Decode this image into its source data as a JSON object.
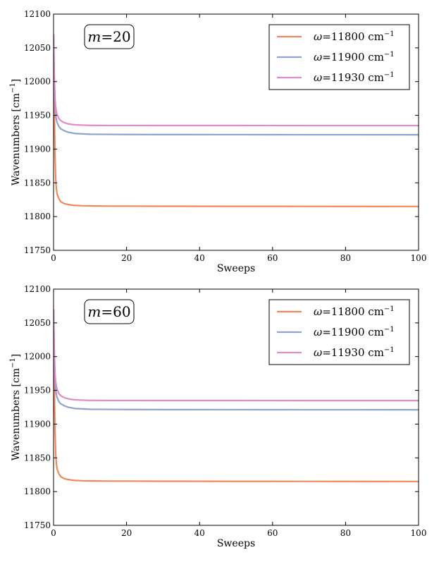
{
  "chart_data": [
    {
      "type": "line",
      "annotation": {
        "var": "m",
        "value": "=20"
      },
      "xlabel": "Sweeps",
      "ylabel": "Wavenumbers [cm",
      "ylabel_sup": "−1",
      "ylabel_close": "]",
      "xlim": [
        0,
        100
      ],
      "ylim": [
        11750,
        12100
      ],
      "xticks": [
        0,
        20,
        40,
        60,
        80,
        100
      ],
      "yticks": [
        11750,
        11800,
        11850,
        11900,
        11950,
        12000,
        12050,
        12100
      ],
      "legend_position": "top-right",
      "series": [
        {
          "name_var": "ω",
          "name": "=11800 cm",
          "name_sup": "−1",
          "color": "#f4875a",
          "x": [
            0,
            0.2,
            0.4,
            0.6,
            0.8,
            1,
            1.5,
            2,
            3,
            4,
            5,
            6,
            8,
            10,
            15,
            20,
            30,
            50,
            70,
            100
          ],
          "y": [
            12070,
            11960,
            11890,
            11855,
            11840,
            11833,
            11826,
            11822,
            11819,
            11818,
            11817,
            11816.5,
            11816,
            11815.8,
            11815.5,
            11815.5,
            11815.3,
            11815.2,
            11815.1,
            11815
          ]
        },
        {
          "name_var": "ω",
          "name": "=11900 cm",
          "name_sup": "−1",
          "color": "#8fa3cf",
          "x": [
            0,
            0.2,
            0.4,
            0.6,
            0.8,
            1,
            1.5,
            2,
            3,
            4,
            5,
            6,
            8,
            10,
            15,
            20,
            30,
            50,
            70,
            100
          ],
          "y": [
            12070,
            12000,
            11965,
            11950,
            11943,
            11939,
            11933,
            11930,
            11927,
            11925,
            11924,
            11923,
            11922.5,
            11922,
            11921.8,
            11921.6,
            11921.5,
            11921.4,
            11921.3,
            11921.2
          ]
        },
        {
          "name_var": "ω",
          "name": "=11930 cm",
          "name_sup": "−1",
          "color": "#e48ac9",
          "x": [
            0,
            0.2,
            0.4,
            0.6,
            0.8,
            1,
            1.5,
            2,
            3,
            4,
            5,
            6,
            8,
            10,
            15,
            20,
            30,
            50,
            70,
            100
          ],
          "y": [
            12070,
            12010,
            11975,
            11962,
            11955,
            11951,
            11945,
            11942,
            11939,
            11937.5,
            11936.5,
            11936,
            11935.5,
            11935.2,
            11935,
            11935,
            11934.9,
            11934.9,
            11934.8,
            11934.8
          ]
        }
      ]
    },
    {
      "type": "line",
      "annotation": {
        "var": "m",
        "value": "=60"
      },
      "xlabel": "Sweeps",
      "ylabel": "Wavenumbers [cm",
      "ylabel_sup": "−1",
      "ylabel_close": "]",
      "xlim": [
        0,
        100
      ],
      "ylim": [
        11750,
        12100
      ],
      "xticks": [
        0,
        20,
        40,
        60,
        80,
        100
      ],
      "yticks": [
        11750,
        11800,
        11850,
        11900,
        11950,
        12000,
        12050,
        12100
      ],
      "legend_position": "top-right",
      "series": [
        {
          "name_var": "ω",
          "name": "=11800 cm",
          "name_sup": "−1",
          "color": "#f4875a",
          "x": [
            0,
            0.2,
            0.4,
            0.6,
            0.8,
            1,
            1.5,
            2,
            3,
            4,
            5,
            6,
            8,
            10,
            15,
            20,
            30,
            50,
            70,
            100
          ],
          "y": [
            12070,
            11960,
            11890,
            11855,
            11840,
            11833,
            11826,
            11822,
            11819,
            11818,
            11817,
            11816.5,
            11816,
            11815.8,
            11815.5,
            11815.5,
            11815.3,
            11815.2,
            11815.1,
            11815
          ]
        },
        {
          "name_var": "ω",
          "name": "=11900 cm",
          "name_sup": "−1",
          "color": "#8fa3cf",
          "x": [
            0,
            0.2,
            0.4,
            0.6,
            0.8,
            1,
            1.5,
            2,
            3,
            4,
            5,
            6,
            8,
            10,
            15,
            20,
            30,
            50,
            70,
            100
          ],
          "y": [
            12070,
            12000,
            11965,
            11950,
            11943,
            11939,
            11933,
            11930,
            11927,
            11925,
            11924,
            11923,
            11922.5,
            11922,
            11921.8,
            11921.6,
            11921.5,
            11921.4,
            11921.3,
            11921.2
          ]
        },
        {
          "name_var": "ω",
          "name": "=11930 cm",
          "name_sup": "−1",
          "color": "#e48ac9",
          "x": [
            0,
            0.2,
            0.4,
            0.6,
            0.8,
            1,
            1.5,
            2,
            3,
            4,
            5,
            6,
            8,
            10,
            15,
            20,
            30,
            50,
            70,
            100
          ],
          "y": [
            12070,
            12010,
            11975,
            11962,
            11955,
            11951,
            11945,
            11942,
            11939,
            11937.5,
            11936.5,
            11936,
            11935.5,
            11935.2,
            11935,
            11935,
            11934.9,
            11934.9,
            11934.8,
            11934.8
          ]
        }
      ]
    }
  ]
}
